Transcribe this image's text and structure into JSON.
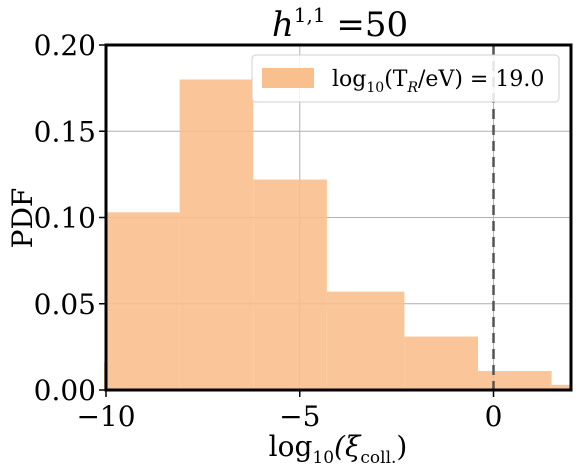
{
  "chart_data": {
    "type": "histogram",
    "title": {
      "base": "h",
      "sup": "1,1",
      "tail": " =50"
    },
    "xlabel": {
      "pre": "log",
      "sub1": "10",
      "mid": "(ξ",
      "sub2": "coll.",
      "post": ")"
    },
    "ylabel": "PDF",
    "xlim": [
      -10,
      2
    ],
    "ylim": [
      0,
      0.2
    ],
    "xticks": [
      {
        "value": -10,
        "label": "−10"
      },
      {
        "value": -5,
        "label": "−5"
      },
      {
        "value": 0,
        "label": "0"
      }
    ],
    "yticks": [
      {
        "value": 0,
        "label": "0.00"
      },
      {
        "value": 0.05,
        "label": "0.05"
      },
      {
        "value": 0.1,
        "label": "0.10"
      },
      {
        "value": 0.15,
        "label": "0.15"
      },
      {
        "value": 0.2,
        "label": "0.20"
      }
    ],
    "grid": true,
    "vline": {
      "x": 0,
      "style": "dashed"
    },
    "series": [
      {
        "name": "log10(T_R/eV) = 19.0",
        "color": "#f9c08e",
        "bins": [
          {
            "x0": -10.1,
            "x1": -10.0,
            "y": 0.016
          },
          {
            "x0": -10.0,
            "x1": -8.1,
            "y": 0.103
          },
          {
            "x0": -8.1,
            "x1": -6.2,
            "y": 0.18
          },
          {
            "x0": -6.2,
            "x1": -4.3,
            "y": 0.122
          },
          {
            "x0": -4.3,
            "x1": -2.3,
            "y": 0.057
          },
          {
            "x0": -2.3,
            "x1": -0.4,
            "y": 0.031
          },
          {
            "x0": -0.4,
            "x1": 1.5,
            "y": 0.011
          },
          {
            "x0": 1.5,
            "x1": 2.0,
            "y": 0.003
          }
        ]
      }
    ],
    "legend": {
      "placement": "top-right",
      "label": {
        "pre": "log",
        "sub": "10",
        "mid": "(T",
        "sub2": "R",
        "post": "/eV) = 19.0"
      }
    }
  }
}
